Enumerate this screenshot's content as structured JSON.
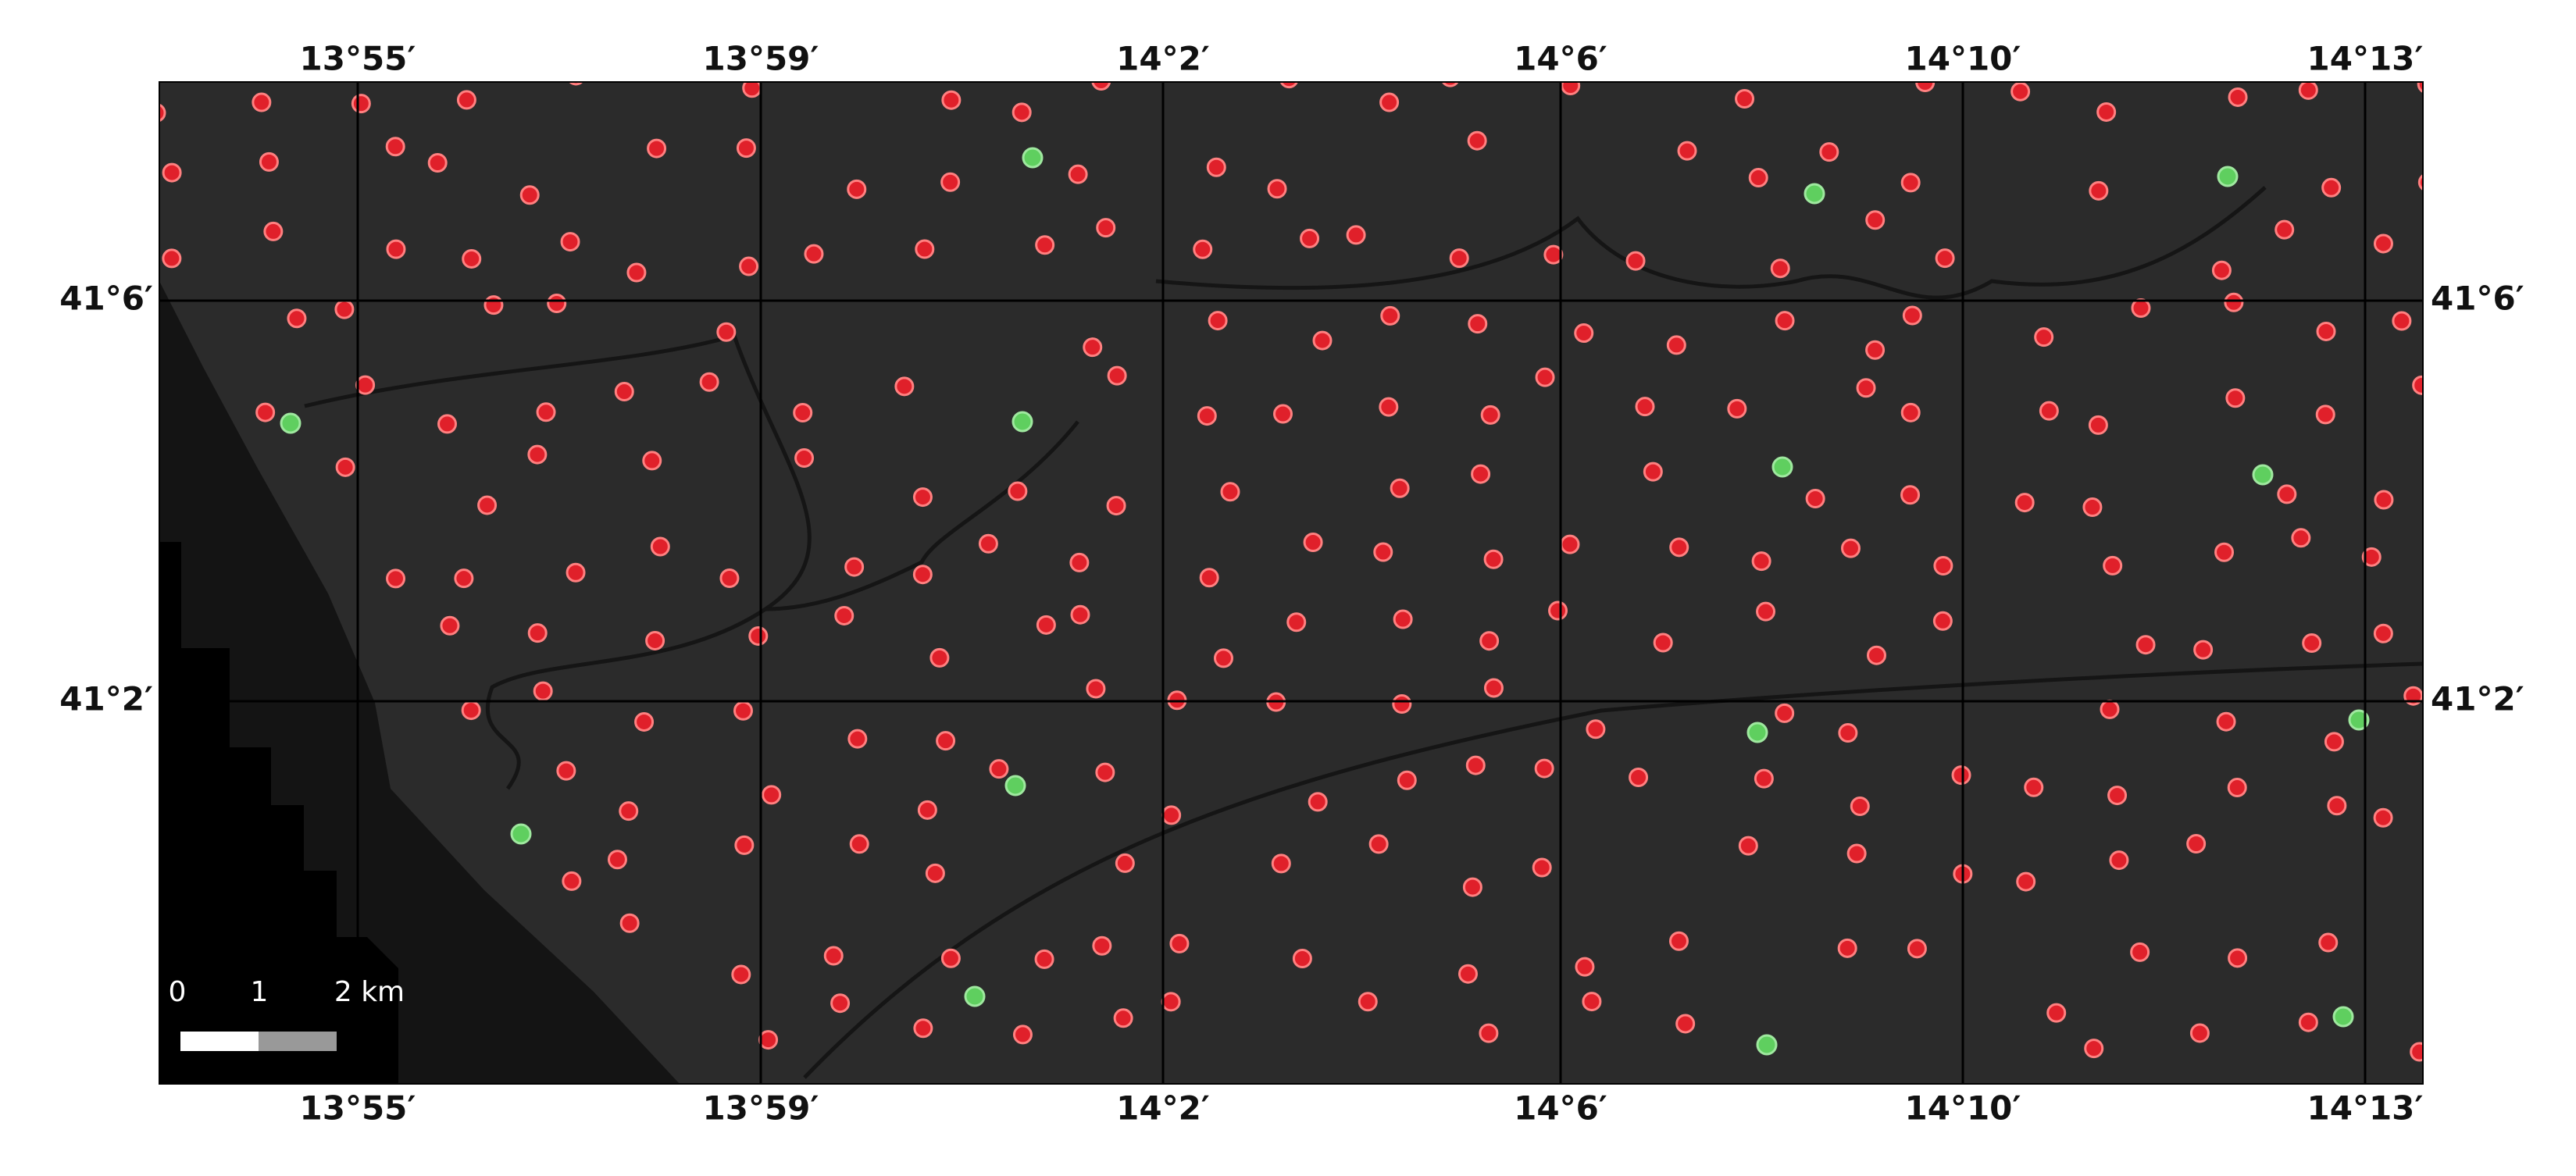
{
  "top_labels": [
    "13°55′",
    "13°59′",
    "14°2′",
    "14°6′",
    "14°10′",
    "14°13′"
  ],
  "bottom_labels": [
    "13°55′",
    "13°59′",
    "14°2′",
    "14°6′",
    "14°10′",
    "14°13′"
  ],
  "left_labels": [
    "41°6′",
    "41°2′"
  ],
  "right_labels": [
    "41°6′",
    "41°2′"
  ],
  "scale_bar": {
    "labels": [
      "0",
      "1",
      "2 km"
    ]
  }
}
